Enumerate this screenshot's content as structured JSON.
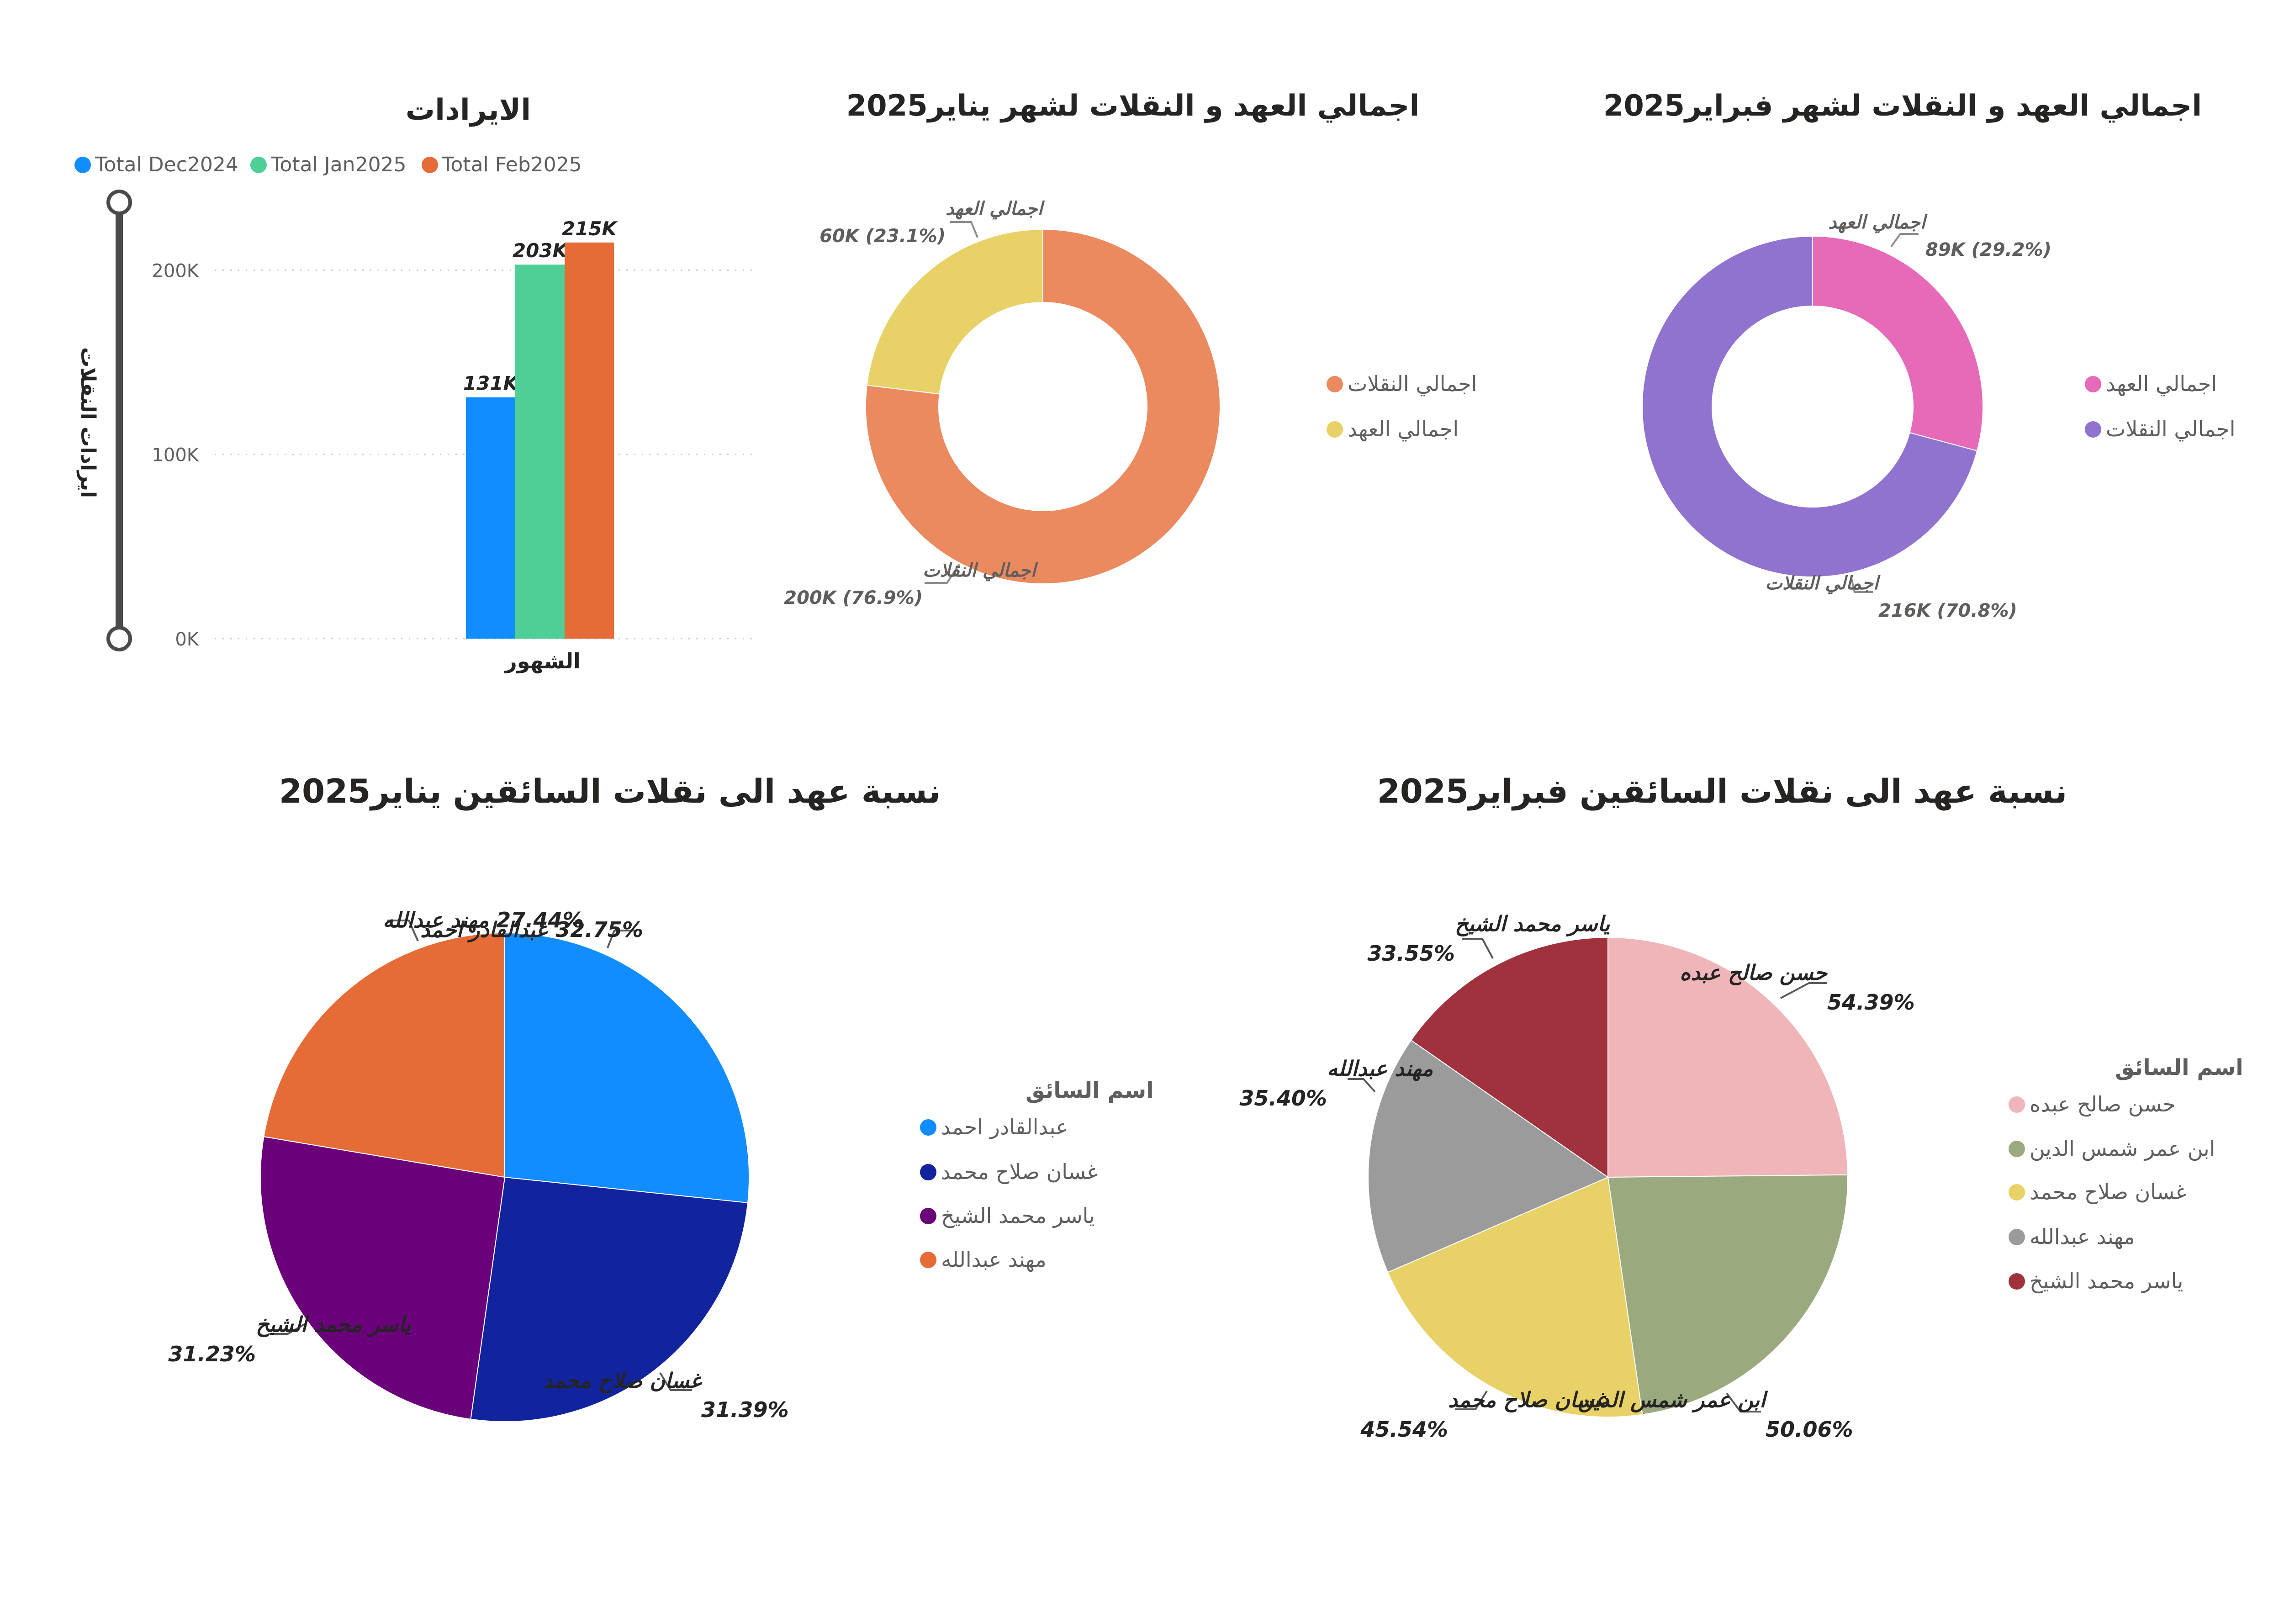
{
  "chart_data": [
    {
      "type": "bar",
      "title": "الايرادات",
      "xlabel": "الشهور",
      "ylabel": "ايرادات النقلات",
      "categories": [
        "الشهور"
      ],
      "series": [
        {
          "name": "Total Dec2024",
          "values": [
            131
          ],
          "label": "131K",
          "color": "#118DFF"
        },
        {
          "name": "Total Jan2025",
          "values": [
            203
          ],
          "label": "203K",
          "color": "#4FCE95"
        },
        {
          "name": "Total Feb2025",
          "values": [
            215
          ],
          "label": "215K",
          "color": "#E66C37"
        }
      ],
      "yticks": [
        "0K",
        "100K",
        "200K"
      ],
      "ylim": [
        0,
        240
      ],
      "grid": true,
      "legend": "top"
    },
    {
      "type": "pie",
      "title": "اجمالي العهد و النقلات لشهر يناير2025",
      "donut": true,
      "legend": "right",
      "slices": [
        {
          "name": "اجمالي النقلات",
          "value": 200,
          "label": "اجمالي النقلات",
          "value_text": "200K (76.9%)",
          "color": "#EB895F"
        },
        {
          "name": "اجمالي العهد",
          "value": 60,
          "label": "اجمالي العهد",
          "value_text": "60K (23.1%)",
          "color": "#E8D166"
        }
      ]
    },
    {
      "type": "pie",
      "title": "اجمالي العهد و النقلات لشهر فبراير2025",
      "donut": true,
      "legend": "right",
      "slices": [
        {
          "name": "اجمالي العهد",
          "value": 89,
          "label": "اجمالي العهد",
          "value_text": "89K (29.2%)",
          "color": "#E66AB8"
        },
        {
          "name": "اجمالي النقلات",
          "value": 216,
          "label": "اجمالي النقلات",
          "value_text": "216K (70.8%)",
          "color": "#8F73CF"
        }
      ]
    },
    {
      "type": "pie",
      "title": "نسبة عهد الى نقلات السائقين يناير2025",
      "legend_title": "اسم السائق",
      "legend": "right",
      "slices": [
        {
          "name": "عبدالقادر احمد",
          "value": 32.75,
          "label": "32.75% عبدالقادر احمد",
          "color": "#118DFF"
        },
        {
          "name": "غسان صلاح محمد",
          "value": 31.39,
          "label": "غسان صلاح محمد",
          "value_text": "31.39%",
          "color": "#12239E"
        },
        {
          "name": "ياسر محمد الشيخ",
          "value": 31.23,
          "label": "ياسر محمد الشيخ",
          "value_text": "31.23%",
          "color": "#6B007B"
        },
        {
          "name": "مهند عبدالله",
          "value": 27.44,
          "label": "27.44% مهند عبدالله",
          "color": "#E66C37"
        }
      ]
    },
    {
      "type": "pie",
      "title": "نسبة عهد الى نقلات السائقين فبراير2025",
      "legend_title": "اسم السائق",
      "legend": "right",
      "slices": [
        {
          "name": "حسن صالح عبده",
          "value": 54.39,
          "label": "حسن صالح عبده",
          "value_text": "54.39%",
          "color": "#EFB5B9"
        },
        {
          "name": "ابن عمر شمس الدين",
          "value": 50.06,
          "label": "ابن عمر شمس الدين",
          "value_text": "50.06%",
          "color": "#9BA97E"
        },
        {
          "name": "غسان صلاح محمد",
          "value": 45.54,
          "label": "غسان صلاح محمد",
          "value_text": "45.54%",
          "color": "#E8D166"
        },
        {
          "name": "مهند عبدالله",
          "value": 35.4,
          "label": "مهند عبدالله",
          "value_text": "35.40%",
          "color": "#9B9B9B"
        },
        {
          "name": "ياسر محمد الشيخ",
          "value": 33.55,
          "label": "ياسر محمد الشيخ",
          "value_text": "33.55%",
          "color": "#A0323E"
        }
      ]
    }
  ]
}
